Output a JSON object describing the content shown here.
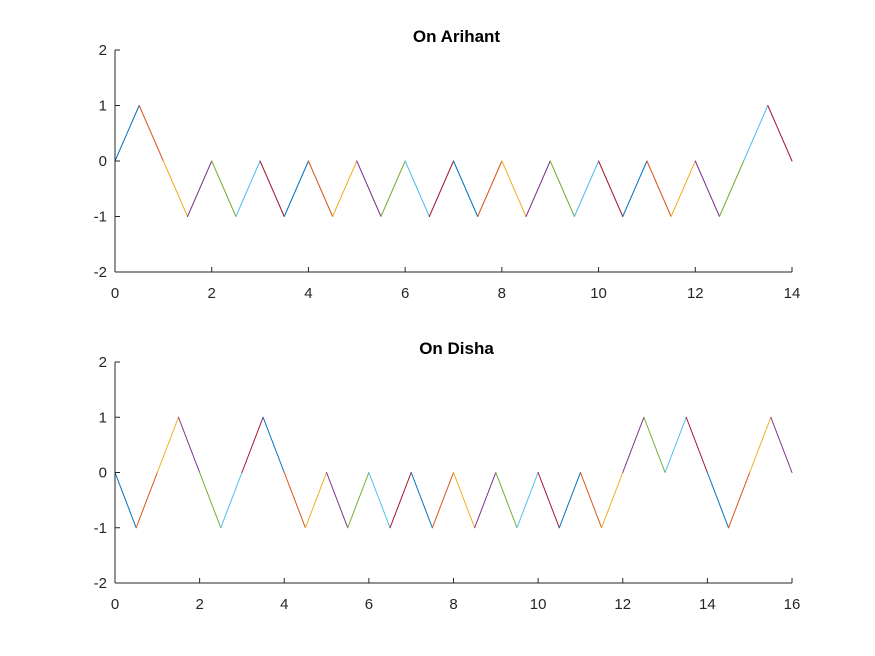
{
  "colors": [
    "#0072BD",
    "#D95319",
    "#EDB120",
    "#7E2F8E",
    "#77AC30",
    "#4DBEEE",
    "#A2142F"
  ],
  "axis_color": "#262626",
  "chart_data": [
    {
      "type": "line",
      "title": "On Arihant",
      "xlabel": "",
      "ylabel": "",
      "xlim": [
        0,
        14
      ],
      "ylim": [
        -2,
        2
      ],
      "xticks": [
        0,
        2,
        4,
        6,
        8,
        10,
        12,
        14
      ],
      "yticks": [
        -2,
        -1,
        0,
        1,
        2
      ],
      "grid": false,
      "x": [
        0,
        0.5,
        1,
        1.5,
        2,
        2.5,
        3,
        3.5,
        4,
        4.5,
        5,
        5.5,
        6,
        6.5,
        7,
        7.5,
        8,
        8.5,
        9,
        9.5,
        10,
        10.5,
        11,
        11.5,
        12,
        12.5,
        13,
        13.5,
        14
      ],
      "y": [
        0,
        1,
        0,
        -1,
        0,
        -1,
        0,
        -1,
        0,
        -1,
        0,
        -1,
        0,
        -1,
        0,
        -1,
        0,
        -1,
        0,
        -1,
        0,
        -1,
        0,
        -1,
        0,
        -1,
        0,
        1,
        0
      ]
    },
    {
      "type": "line",
      "title": "On Disha",
      "xlabel": "",
      "ylabel": "",
      "xlim": [
        0,
        16
      ],
      "ylim": [
        -2,
        2
      ],
      "xticks": [
        0,
        2,
        4,
        6,
        8,
        10,
        12,
        14,
        16
      ],
      "yticks": [
        -2,
        -1,
        0,
        1,
        2
      ],
      "grid": false,
      "x": [
        0,
        0.5,
        1,
        1.5,
        2,
        2.5,
        3,
        3.5,
        4,
        4.5,
        5,
        5.5,
        6,
        6.5,
        7,
        7.5,
        8,
        8.5,
        9,
        9.5,
        10,
        10.5,
        11,
        11.5,
        12,
        12.5,
        13,
        13.5,
        14,
        14.5,
        15,
        15.5,
        16
      ],
      "y": [
        0,
        -1,
        0,
        1,
        0,
        -1,
        0,
        1,
        0,
        -1,
        0,
        -1,
        0,
        -1,
        0,
        -1,
        0,
        -1,
        0,
        -1,
        0,
        -1,
        0,
        -1,
        0,
        1,
        0,
        1,
        0,
        -1,
        0,
        1,
        0
      ]
    }
  ]
}
